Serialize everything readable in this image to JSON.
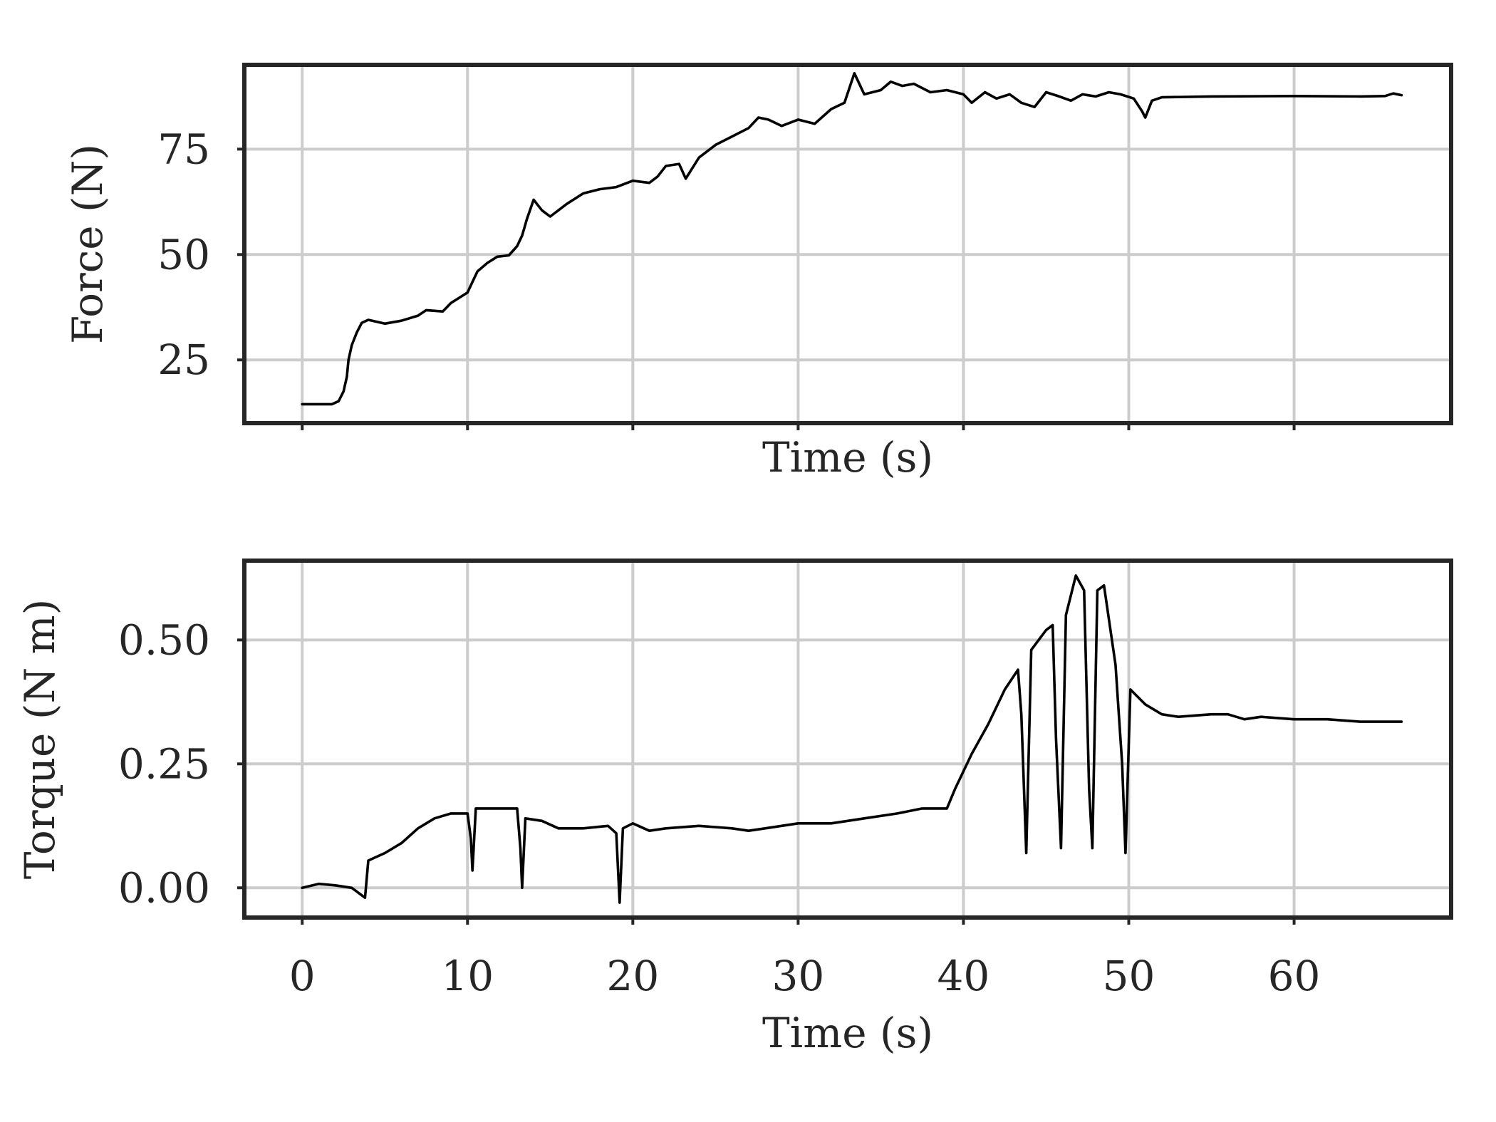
{
  "chart_data": [
    {
      "type": "line",
      "title": "",
      "xlabel": "Time (s)",
      "ylabel": "Force (N)",
      "xlim": [
        -3.5,
        69.5
      ],
      "ylim": [
        10,
        95
      ],
      "xticks": [
        0,
        10,
        20,
        30,
        40,
        50,
        60
      ],
      "yticks": [
        25,
        50,
        75
      ],
      "x_tick_labels_shown": false,
      "grid": true,
      "series": [
        {
          "color": "#000000",
          "points": [
            [
              0,
              14.5
            ],
            [
              1.0,
              14.5
            ],
            [
              1.8,
              14.5
            ],
            [
              2.2,
              15.2
            ],
            [
              2.5,
              17.5
            ],
            [
              2.7,
              21
            ],
            [
              2.8,
              25
            ],
            [
              3.0,
              28.5
            ],
            [
              3.3,
              31.5
            ],
            [
              3.6,
              33.8
            ],
            [
              4.0,
              34.5
            ],
            [
              5.0,
              33.6
            ],
            [
              6.0,
              34.3
            ],
            [
              7.0,
              35.5
            ],
            [
              7.5,
              36.8
            ],
            [
              8.5,
              36.5
            ],
            [
              9.0,
              38.5
            ],
            [
              10.0,
              41.0
            ],
            [
              10.3,
              43.5
            ],
            [
              10.6,
              46.0
            ],
            [
              11.2,
              48.0
            ],
            [
              11.8,
              49.5
            ],
            [
              12.5,
              49.8
            ],
            [
              13.0,
              52.0
            ],
            [
              13.3,
              54.5
            ],
            [
              13.6,
              58.5
            ],
            [
              14.0,
              63.0
            ],
            [
              14.5,
              60.5
            ],
            [
              15.0,
              59.0
            ],
            [
              15.5,
              60.5
            ],
            [
              16.0,
              62.0
            ],
            [
              17.0,
              64.5
            ],
            [
              18.0,
              65.5
            ],
            [
              19.0,
              66.0
            ],
            [
              20.0,
              67.5
            ],
            [
              21.0,
              67.0
            ],
            [
              21.5,
              68.5
            ],
            [
              22.0,
              71.0
            ],
            [
              22.8,
              71.5
            ],
            [
              23.2,
              68.0
            ],
            [
              24.0,
              73.0
            ],
            [
              25.0,
              76.0
            ],
            [
              26.0,
              78.0
            ],
            [
              27.0,
              80.0
            ],
            [
              27.6,
              82.5
            ],
            [
              28.2,
              82.0
            ],
            [
              29.0,
              80.5
            ],
            [
              30.0,
              82.0
            ],
            [
              31.0,
              81.0
            ],
            [
              32.0,
              84.5
            ],
            [
              32.8,
              86.0
            ],
            [
              33.4,
              93.0
            ],
            [
              34.0,
              88.0
            ],
            [
              35.0,
              89.0
            ],
            [
              35.6,
              91.0
            ],
            [
              36.3,
              90.0
            ],
            [
              37.0,
              90.5
            ],
            [
              38.0,
              88.5
            ],
            [
              39.0,
              89.0
            ],
            [
              40.0,
              88.0
            ],
            [
              40.5,
              86.0
            ],
            [
              41.3,
              88.5
            ],
            [
              42.0,
              87.0
            ],
            [
              42.8,
              88.0
            ],
            [
              43.5,
              86.0
            ],
            [
              44.3,
              85.0
            ],
            [
              45.0,
              88.5
            ],
            [
              45.8,
              87.5
            ],
            [
              46.5,
              86.5
            ],
            [
              47.2,
              88.0
            ],
            [
              48.0,
              87.5
            ],
            [
              48.8,
              88.5
            ],
            [
              49.5,
              88.0
            ],
            [
              50.3,
              87.0
            ],
            [
              50.8,
              84.0
            ],
            [
              51.0,
              82.5
            ],
            [
              51.4,
              86.5
            ],
            [
              52.0,
              87.3
            ],
            [
              55.0,
              87.5
            ],
            [
              60.0,
              87.6
            ],
            [
              64.0,
              87.5
            ],
            [
              65.5,
              87.6
            ],
            [
              66.0,
              88.2
            ],
            [
              66.5,
              87.8
            ]
          ]
        }
      ]
    },
    {
      "type": "line",
      "title": "",
      "xlabel": "Time (s)",
      "ylabel": "Torque (N m)",
      "xlim": [
        -3.5,
        69.5
      ],
      "ylim": [
        -0.06,
        0.66
      ],
      "xticks": [
        0,
        10,
        20,
        30,
        40,
        50,
        60
      ],
      "yticks": [
        0.0,
        0.25,
        0.5
      ],
      "x_tick_labels_shown": true,
      "grid": true,
      "series": [
        {
          "color": "#000000",
          "points": [
            [
              0,
              0.0
            ],
            [
              1.0,
              0.008
            ],
            [
              2.0,
              0.005
            ],
            [
              3.0,
              0.0
            ],
            [
              3.8,
              -0.02
            ],
            [
              4.0,
              0.055
            ],
            [
              5.0,
              0.07
            ],
            [
              6.0,
              0.09
            ],
            [
              7.0,
              0.12
            ],
            [
              8.0,
              0.14
            ],
            [
              9.0,
              0.15
            ],
            [
              10.0,
              0.15
            ],
            [
              10.2,
              0.1
            ],
            [
              10.3,
              0.035
            ],
            [
              10.5,
              0.16
            ],
            [
              11.5,
              0.16
            ],
            [
              13.0,
              0.16
            ],
            [
              13.2,
              0.08
            ],
            [
              13.3,
              0.0
            ],
            [
              13.5,
              0.14
            ],
            [
              14.5,
              0.135
            ],
            [
              15.5,
              0.12
            ],
            [
              17.0,
              0.12
            ],
            [
              18.5,
              0.125
            ],
            [
              19.0,
              0.11
            ],
            [
              19.2,
              -0.03
            ],
            [
              19.4,
              0.12
            ],
            [
              20.0,
              0.13
            ],
            [
              21.0,
              0.115
            ],
            [
              22.0,
              0.12
            ],
            [
              24.0,
              0.125
            ],
            [
              26.0,
              0.12
            ],
            [
              27.0,
              0.115
            ],
            [
              28.0,
              0.12
            ],
            [
              30.0,
              0.13
            ],
            [
              32.0,
              0.13
            ],
            [
              34.0,
              0.14
            ],
            [
              36.0,
              0.15
            ],
            [
              37.5,
              0.16
            ],
            [
              39.0,
              0.16
            ],
            [
              39.5,
              0.2
            ],
            [
              40.5,
              0.27
            ],
            [
              41.5,
              0.33
            ],
            [
              42.5,
              0.4
            ],
            [
              43.3,
              0.44
            ],
            [
              43.5,
              0.35
            ],
            [
              43.8,
              0.07
            ],
            [
              44.1,
              0.48
            ],
            [
              45.0,
              0.52
            ],
            [
              45.4,
              0.53
            ],
            [
              45.6,
              0.3
            ],
            [
              45.9,
              0.08
            ],
            [
              46.2,
              0.55
            ],
            [
              46.8,
              0.63
            ],
            [
              47.3,
              0.6
            ],
            [
              47.6,
              0.2
            ],
            [
              47.8,
              0.08
            ],
            [
              48.1,
              0.6
            ],
            [
              48.5,
              0.61
            ],
            [
              49.2,
              0.45
            ],
            [
              49.6,
              0.25
            ],
            [
              49.8,
              0.07
            ],
            [
              50.1,
              0.4
            ],
            [
              51.0,
              0.37
            ],
            [
              52.0,
              0.35
            ],
            [
              53.0,
              0.345
            ],
            [
              55.0,
              0.35
            ],
            [
              56.0,
              0.35
            ],
            [
              57.0,
              0.34
            ],
            [
              58.0,
              0.345
            ],
            [
              60.0,
              0.34
            ],
            [
              62.0,
              0.34
            ],
            [
              64.0,
              0.335
            ],
            [
              66.5,
              0.335
            ]
          ]
        }
      ]
    }
  ]
}
